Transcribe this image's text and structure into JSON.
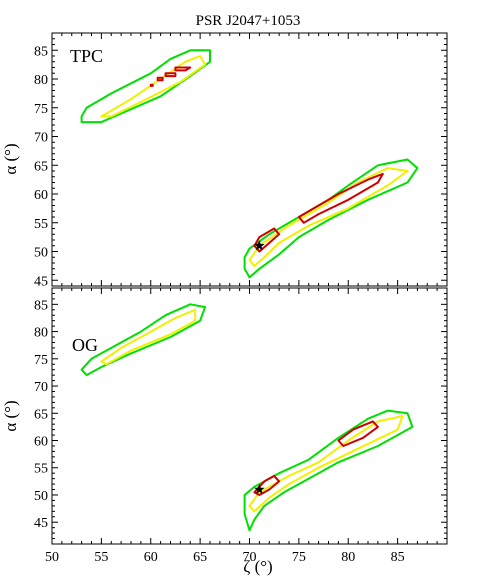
{
  "figure": {
    "title": "PSR J2047+1053",
    "xlabel": "ζ (°)"
  },
  "colors": {
    "green": "#00e000",
    "yellow": "#f0f000",
    "red": "#d00000",
    "star": "#000000"
  },
  "chart_data": [
    {
      "type": "contour",
      "panel_label": "TPC",
      "xlabel": "ζ (°)",
      "ylabel": "α (°)",
      "xlim": [
        50,
        90
      ],
      "ylim": [
        44,
        88
      ],
      "xticks": [
        50,
        55,
        60,
        65,
        70,
        75,
        80,
        85
      ],
      "yticks": [
        45,
        50,
        55,
        60,
        65,
        70,
        75,
        80,
        85
      ],
      "best_fit": {
        "x": 71,
        "y": 51
      },
      "contours": [
        {
          "level": "green",
          "points": [
            [
              53,
              73.5
            ],
            [
              53.5,
              75
            ],
            [
              56,
              77.5
            ],
            [
              60,
              81
            ],
            [
              62,
              83.5
            ],
            [
              64,
              85
            ],
            [
              66,
              85
            ],
            [
              66,
              83
            ],
            [
              64,
              80.5
            ],
            [
              61,
              77
            ],
            [
              57,
              74
            ],
            [
              55,
              72.5
            ],
            [
              53,
              72.5
            ]
          ]
        },
        {
          "level": "green",
          "points": [
            [
              69.5,
              49
            ],
            [
              70,
              50.5
            ],
            [
              72,
              53
            ],
            [
              75,
              56
            ],
            [
              78,
              59
            ],
            [
              80,
              61.5
            ],
            [
              83,
              65
            ],
            [
              86,
              66
            ],
            [
              87,
              64.5
            ],
            [
              86,
              62
            ],
            [
              82,
              59
            ],
            [
              78,
              55.5
            ],
            [
              75,
              52.5
            ],
            [
              73,
              49.5
            ],
            [
              71,
              47
            ],
            [
              70,
              45.5
            ],
            [
              69.5,
              47
            ]
          ]
        },
        {
          "level": "yellow",
          "points": [
            [
              55,
              73.5
            ],
            [
              58,
              76.5
            ],
            [
              61,
              80
            ],
            [
              63.5,
              83
            ],
            [
              65,
              84
            ],
            [
              65.5,
              82.5
            ],
            [
              63,
              79.5
            ],
            [
              59,
              76
            ],
            [
              56,
              73.5
            ]
          ]
        },
        {
          "level": "yellow",
          "points": [
            [
              70,
              48.5
            ],
            [
              71,
              51
            ],
            [
              74,
              54.5
            ],
            [
              78,
              58.5
            ],
            [
              81,
              62
            ],
            [
              84,
              64.5
            ],
            [
              86,
              64
            ],
            [
              84,
              61.5
            ],
            [
              80,
              57.5
            ],
            [
              76,
              54.5
            ],
            [
              73,
              51.5
            ],
            [
              71.5,
              49
            ],
            [
              70.5,
              47.5
            ]
          ]
        },
        {
          "level": "red",
          "points": [
            [
              62.5,
              82
            ],
            [
              64,
              82
            ],
            [
              63.5,
              81.5
            ],
            [
              62.5,
              81.5
            ]
          ]
        },
        {
          "level": "red",
          "points": [
            [
              61.5,
              81
            ],
            [
              62.5,
              81
            ],
            [
              62.5,
              80.5
            ],
            [
              61.5,
              80.5
            ]
          ]
        },
        {
          "level": "red",
          "points": [
            [
              60.7,
              80.2
            ],
            [
              61.2,
              80.2
            ],
            [
              61.2,
              79.8
            ],
            [
              60.7,
              79.8
            ]
          ]
        },
        {
          "level": "red",
          "points": [
            [
              60,
              79
            ],
            [
              60.2,
              79
            ],
            [
              60.2,
              78.8
            ],
            [
              60,
              78.8
            ]
          ]
        },
        {
          "level": "red",
          "points": [
            [
              70.5,
              51
            ],
            [
              71,
              52.5
            ],
            [
              72.5,
              54
            ],
            [
              73,
              53
            ],
            [
              72,
              51.5
            ],
            [
              71,
              50
            ]
          ]
        },
        {
          "level": "red",
          "points": [
            [
              75,
              56
            ],
            [
              77,
              58
            ],
            [
              79,
              60
            ],
            [
              82,
              62.5
            ],
            [
              83.5,
              63.5
            ],
            [
              83,
              62
            ],
            [
              80,
              59
            ],
            [
              77,
              56.5
            ],
            [
              75.5,
              55
            ]
          ]
        }
      ]
    },
    {
      "type": "contour",
      "panel_label": "OG",
      "xlabel": "ζ (°)",
      "ylabel": "α (°)",
      "xlim": [
        50,
        90
      ],
      "ylim": [
        41,
        88
      ],
      "xticks": [
        50,
        55,
        60,
        65,
        70,
        75,
        80,
        85
      ],
      "yticks": [
        45,
        50,
        55,
        60,
        65,
        70,
        75,
        80,
        85
      ],
      "best_fit": {
        "x": 71,
        "y": 51
      },
      "contours": [
        {
          "level": "green",
          "points": [
            [
              53,
              73
            ],
            [
              54,
              75
            ],
            [
              56,
              77
            ],
            [
              59,
              80
            ],
            [
              61.5,
              83
            ],
            [
              64,
              85
            ],
            [
              65.5,
              84.5
            ],
            [
              65,
              82
            ],
            [
              62,
              79
            ],
            [
              58,
              76
            ],
            [
              55,
              73.5
            ],
            [
              53.5,
              72
            ]
          ]
        },
        {
          "level": "green",
          "points": [
            [
              69.5,
              50
            ],
            [
              70.5,
              51.5
            ],
            [
              73,
              54
            ],
            [
              76,
              56.5
            ],
            [
              79,
              60.5
            ],
            [
              82,
              64
            ],
            [
              84,
              65.5
            ],
            [
              86,
              65
            ],
            [
              86.5,
              62.5
            ],
            [
              83,
              59
            ],
            [
              79,
              56
            ],
            [
              76,
              53
            ],
            [
              73.5,
              50.5
            ],
            [
              71.5,
              48
            ],
            [
              70.5,
              45.5
            ],
            [
              70,
              43.5
            ],
            [
              69.5,
              46.5
            ]
          ]
        },
        {
          "level": "yellow",
          "points": [
            [
              55,
              74.5
            ],
            [
              57,
              77
            ],
            [
              60,
              80
            ],
            [
              62.5,
              82.5
            ],
            [
              64.5,
              84
            ],
            [
              64.5,
              82
            ],
            [
              62,
              79.5
            ],
            [
              58,
              76.5
            ],
            [
              55.5,
              74
            ]
          ]
        },
        {
          "level": "yellow",
          "points": [
            [
              70,
              48
            ],
            [
              71,
              50.5
            ],
            [
              74,
              53.5
            ],
            [
              77,
              56
            ],
            [
              80,
              60
            ],
            [
              83,
              63.5
            ],
            [
              85.5,
              64.5
            ],
            [
              85,
              62
            ],
            [
              81,
              58.5
            ],
            [
              77,
              55
            ],
            [
              74,
              52
            ],
            [
              72,
              49.5
            ],
            [
              70.5,
              47
            ]
          ]
        },
        {
          "level": "red",
          "points": [
            [
              70.5,
              50.5
            ],
            [
              71.5,
              52.5
            ],
            [
              72.5,
              53.5
            ],
            [
              73,
              52.5
            ],
            [
              72,
              51
            ],
            [
              71,
              50
            ]
          ]
        },
        {
          "level": "red",
          "points": [
            [
              79,
              60
            ],
            [
              80.5,
              62
            ],
            [
              82.5,
              63.5
            ],
            [
              83,
              62.5
            ],
            [
              81.5,
              60.5
            ],
            [
              79.5,
              59
            ]
          ]
        }
      ]
    }
  ]
}
